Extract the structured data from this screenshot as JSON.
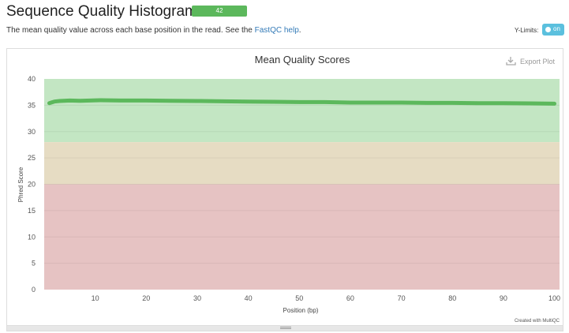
{
  "header": {
    "title": "Sequence Quality Histograms",
    "badge_count": "42",
    "description_before": "The mean quality value across each base position in the read. See the ",
    "help_link": "FastQC help",
    "description_after": "."
  },
  "controls": {
    "ylimits_label": "Y-Limits:",
    "toggle_text": "on"
  },
  "plot": {
    "export_label": "Export Plot",
    "credit": "Created with MultiQC"
  },
  "colors": {
    "good_band": "#c3e6c3",
    "warn_band": "#e6dcc3",
    "bad_band": "#e6c3c3",
    "line": "#5cb85c"
  },
  "chart_data": {
    "type": "line",
    "title": "Mean Quality Scores",
    "xlabel": "Position (bp)",
    "ylabel": "Phred Score",
    "xlim": [
      0,
      101
    ],
    "ylim": [
      0,
      40
    ],
    "xticks": [
      10,
      20,
      30,
      40,
      50,
      60,
      70,
      80,
      90,
      100
    ],
    "yticks": [
      0,
      5,
      10,
      15,
      20,
      25,
      30,
      35,
      40
    ],
    "bands": [
      {
        "from": 28,
        "to": 40,
        "color": "#c3e6c3"
      },
      {
        "from": 20,
        "to": 28,
        "color": "#e6dcc3"
      },
      {
        "from": 0,
        "to": 20,
        "color": "#e6c3c3"
      }
    ],
    "series": [
      {
        "color": "#5cb85c",
        "x": [
          1,
          2,
          3,
          5,
          7,
          9,
          11,
          15,
          20,
          25,
          30,
          35,
          40,
          45,
          50,
          55,
          60,
          65,
          70,
          75,
          80,
          85,
          90,
          95,
          100
        ],
        "y": [
          35.4,
          35.7,
          35.8,
          35.9,
          35.85,
          35.9,
          35.95,
          35.9,
          35.9,
          35.85,
          35.8,
          35.75,
          35.7,
          35.65,
          35.6,
          35.6,
          35.5,
          35.5,
          35.5,
          35.45,
          35.45,
          35.4,
          35.4,
          35.35,
          35.3
        ]
      }
    ]
  }
}
